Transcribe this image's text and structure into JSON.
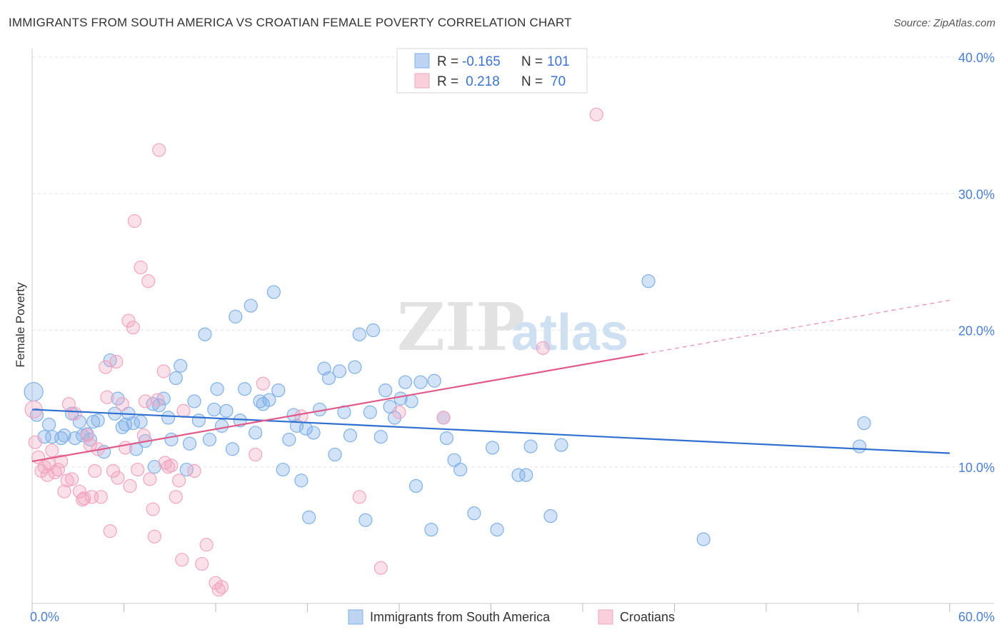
{
  "header": {
    "title": "IMMIGRANTS FROM SOUTH AMERICA VS CROATIAN FEMALE POVERTY CORRELATION CHART",
    "source": "Source: ZipAtlas.com"
  },
  "watermark": {
    "zip": "ZIP",
    "atlas": "atlas"
  },
  "legend_box": {
    "rows": [
      {
        "r_label": "R =",
        "r_value": "-0.165",
        "n_label": "N =",
        "n_value": "101",
        "color": "#7fb0e8"
      },
      {
        "r_label": "R =",
        "r_value": " 0.218",
        "n_label": "N =",
        "n_value": "70",
        "color": "#f2a5bf"
      }
    ]
  },
  "chart_data": {
    "type": "scatter",
    "title": "IMMIGRANTS FROM SOUTH AMERICA VS CROATIAN FEMALE POVERTY CORRELATION CHART",
    "xlabel": "",
    "ylabel": "Female Poverty",
    "xlim": [
      0,
      60
    ],
    "ylim": [
      0,
      40
    ],
    "x_tick_labels": [
      "0.0%",
      "60.0%"
    ],
    "y_tick_labels": [
      "10.0%",
      "20.0%",
      "30.0%",
      "40.0%"
    ],
    "y_ticks": [
      10,
      20,
      30,
      40
    ],
    "grid": true,
    "legend_position": "bottom",
    "colors": {
      "blue": "#7fb0e8",
      "blue_line": "#2f6fd0",
      "pink": "#f2a5bf",
      "pink_line": "#e05a8a",
      "tick_label": "#4a7fd4"
    },
    "series": [
      {
        "name": "Immigrants from South America",
        "color": "#7fb0e8",
        "trend": {
          "x": [
            0,
            60
          ],
          "y": [
            14.2,
            11.0
          ]
        },
        "points": [
          {
            "x": 0.1,
            "y": 15.5
          },
          {
            "x": 0.3,
            "y": 13.8
          },
          {
            "x": 0.8,
            "y": 12.2
          },
          {
            "x": 1.1,
            "y": 13.1
          },
          {
            "x": 1.3,
            "y": 12.2
          },
          {
            "x": 1.9,
            "y": 12.1
          },
          {
            "x": 2.1,
            "y": 12.3
          },
          {
            "x": 2.6,
            "y": 13.9
          },
          {
            "x": 2.8,
            "y": 12.1
          },
          {
            "x": 3.1,
            "y": 13.3
          },
          {
            "x": 3.3,
            "y": 12.3
          },
          {
            "x": 3.6,
            "y": 12.4
          },
          {
            "x": 3.8,
            "y": 12.0
          },
          {
            "x": 4.0,
            "y": 13.3
          },
          {
            "x": 4.3,
            "y": 13.4
          },
          {
            "x": 4.7,
            "y": 11.1
          },
          {
            "x": 5.1,
            "y": 17.8
          },
          {
            "x": 5.4,
            "y": 13.9
          },
          {
            "x": 5.6,
            "y": 15.0
          },
          {
            "x": 5.9,
            "y": 12.9
          },
          {
            "x": 6.1,
            "y": 13.1
          },
          {
            "x": 6.3,
            "y": 13.9
          },
          {
            "x": 6.6,
            "y": 13.2
          },
          {
            "x": 6.8,
            "y": 11.3
          },
          {
            "x": 7.1,
            "y": 13.3
          },
          {
            "x": 7.4,
            "y": 11.9
          },
          {
            "x": 7.9,
            "y": 14.6
          },
          {
            "x": 8.0,
            "y": 10.0
          },
          {
            "x": 8.3,
            "y": 14.5
          },
          {
            "x": 8.6,
            "y": 15.0
          },
          {
            "x": 8.9,
            "y": 13.6
          },
          {
            "x": 9.1,
            "y": 12.0
          },
          {
            "x": 9.4,
            "y": 16.5
          },
          {
            "x": 9.7,
            "y": 17.4
          },
          {
            "x": 10.1,
            "y": 9.8
          },
          {
            "x": 10.3,
            "y": 11.7
          },
          {
            "x": 10.6,
            "y": 14.8
          },
          {
            "x": 10.9,
            "y": 13.4
          },
          {
            "x": 11.3,
            "y": 19.7
          },
          {
            "x": 11.6,
            "y": 12.0
          },
          {
            "x": 11.9,
            "y": 14.2
          },
          {
            "x": 12.1,
            "y": 15.7
          },
          {
            "x": 12.4,
            "y": 13.0
          },
          {
            "x": 12.7,
            "y": 14.1
          },
          {
            "x": 13.1,
            "y": 11.3
          },
          {
            "x": 13.3,
            "y": 21.0
          },
          {
            "x": 13.6,
            "y": 13.4
          },
          {
            "x": 13.9,
            "y": 15.7
          },
          {
            "x": 14.3,
            "y": 21.8
          },
          {
            "x": 14.6,
            "y": 12.5
          },
          {
            "x": 14.9,
            "y": 14.8
          },
          {
            "x": 15.1,
            "y": 14.6
          },
          {
            "x": 15.5,
            "y": 14.9
          },
          {
            "x": 15.8,
            "y": 22.8
          },
          {
            "x": 16.1,
            "y": 15.6
          },
          {
            "x": 16.4,
            "y": 9.8
          },
          {
            "x": 16.8,
            "y": 12.0
          },
          {
            "x": 17.1,
            "y": 13.8
          },
          {
            "x": 17.3,
            "y": 13.0
          },
          {
            "x": 17.6,
            "y": 9.0
          },
          {
            "x": 17.9,
            "y": 12.8
          },
          {
            "x": 18.1,
            "y": 6.3
          },
          {
            "x": 18.4,
            "y": 12.5
          },
          {
            "x": 18.8,
            "y": 14.2
          },
          {
            "x": 19.1,
            "y": 17.2
          },
          {
            "x": 19.4,
            "y": 16.5
          },
          {
            "x": 19.8,
            "y": 10.9
          },
          {
            "x": 20.1,
            "y": 17.0
          },
          {
            "x": 20.4,
            "y": 14.0
          },
          {
            "x": 20.8,
            "y": 12.3
          },
          {
            "x": 21.1,
            "y": 17.3
          },
          {
            "x": 21.4,
            "y": 19.7
          },
          {
            "x": 21.8,
            "y": 6.1
          },
          {
            "x": 22.1,
            "y": 14.0
          },
          {
            "x": 22.3,
            "y": 20.0
          },
          {
            "x": 22.8,
            "y": 12.2
          },
          {
            "x": 23.1,
            "y": 15.6
          },
          {
            "x": 23.4,
            "y": 14.4
          },
          {
            "x": 23.7,
            "y": 13.6
          },
          {
            "x": 24.1,
            "y": 15.0
          },
          {
            "x": 24.4,
            "y": 16.2
          },
          {
            "x": 24.8,
            "y": 14.8
          },
          {
            "x": 25.1,
            "y": 8.6
          },
          {
            "x": 25.4,
            "y": 16.2
          },
          {
            "x": 26.1,
            "y": 5.4
          },
          {
            "x": 26.3,
            "y": 16.3
          },
          {
            "x": 26.9,
            "y": 13.6
          },
          {
            "x": 27.1,
            "y": 12.1
          },
          {
            "x": 27.6,
            "y": 10.5
          },
          {
            "x": 28.0,
            "y": 9.8
          },
          {
            "x": 28.9,
            "y": 6.6
          },
          {
            "x": 30.1,
            "y": 11.4
          },
          {
            "x": 30.4,
            "y": 5.4
          },
          {
            "x": 31.8,
            "y": 9.4
          },
          {
            "x": 32.3,
            "y": 9.4
          },
          {
            "x": 32.6,
            "y": 11.5
          },
          {
            "x": 33.9,
            "y": 6.4
          },
          {
            "x": 34.6,
            "y": 11.6
          },
          {
            "x": 40.3,
            "y": 23.6
          },
          {
            "x": 43.9,
            "y": 4.7
          },
          {
            "x": 54.1,
            "y": 11.5
          },
          {
            "x": 54.4,
            "y": 13.2
          }
        ]
      },
      {
        "name": "Croatians",
        "color": "#f2a5bf",
        "trend": {
          "x": [
            0,
            60
          ],
          "y": [
            10.4,
            22.2
          ],
          "solid_until_x": 40
        },
        "points": [
          {
            "x": 0.1,
            "y": 14.2
          },
          {
            "x": 0.2,
            "y": 11.8
          },
          {
            "x": 0.4,
            "y": 10.7
          },
          {
            "x": 0.6,
            "y": 9.7
          },
          {
            "x": 0.8,
            "y": 10.0
          },
          {
            "x": 1.0,
            "y": 9.4
          },
          {
            "x": 1.1,
            "y": 10.2
          },
          {
            "x": 1.3,
            "y": 11.2
          },
          {
            "x": 1.5,
            "y": 9.6
          },
          {
            "x": 1.7,
            "y": 9.8
          },
          {
            "x": 1.9,
            "y": 10.4
          },
          {
            "x": 2.1,
            "y": 8.2
          },
          {
            "x": 2.3,
            "y": 9.0
          },
          {
            "x": 2.4,
            "y": 14.6
          },
          {
            "x": 2.6,
            "y": 9.1
          },
          {
            "x": 2.8,
            "y": 13.9
          },
          {
            "x": 3.1,
            "y": 8.2
          },
          {
            "x": 3.3,
            "y": 7.6
          },
          {
            "x": 3.4,
            "y": 7.7
          },
          {
            "x": 3.6,
            "y": 12.3
          },
          {
            "x": 3.8,
            "y": 11.6
          },
          {
            "x": 3.9,
            "y": 7.8
          },
          {
            "x": 4.1,
            "y": 9.7
          },
          {
            "x": 4.3,
            "y": 11.3
          },
          {
            "x": 4.5,
            "y": 7.8
          },
          {
            "x": 4.8,
            "y": 17.3
          },
          {
            "x": 4.9,
            "y": 15.1
          },
          {
            "x": 5.1,
            "y": 5.3
          },
          {
            "x": 5.3,
            "y": 9.7
          },
          {
            "x": 5.5,
            "y": 17.7
          },
          {
            "x": 5.6,
            "y": 9.2
          },
          {
            "x": 5.9,
            "y": 14.6
          },
          {
            "x": 6.1,
            "y": 11.4
          },
          {
            "x": 6.3,
            "y": 20.7
          },
          {
            "x": 6.4,
            "y": 8.6
          },
          {
            "x": 6.6,
            "y": 20.2
          },
          {
            "x": 6.7,
            "y": 28.0
          },
          {
            "x": 6.9,
            "y": 9.8
          },
          {
            "x": 7.1,
            "y": 24.6
          },
          {
            "x": 7.3,
            "y": 12.3
          },
          {
            "x": 7.4,
            "y": 14.8
          },
          {
            "x": 7.6,
            "y": 23.6
          },
          {
            "x": 7.7,
            "y": 9.1
          },
          {
            "x": 7.9,
            "y": 6.9
          },
          {
            "x": 8.0,
            "y": 4.9
          },
          {
            "x": 8.2,
            "y": 14.9
          },
          {
            "x": 8.3,
            "y": 33.2
          },
          {
            "x": 8.6,
            "y": 17.0
          },
          {
            "x": 8.7,
            "y": 10.3
          },
          {
            "x": 8.9,
            "y": 10.0
          },
          {
            "x": 9.1,
            "y": 10.1
          },
          {
            "x": 9.4,
            "y": 7.8
          },
          {
            "x": 9.6,
            "y": 9.0
          },
          {
            "x": 9.8,
            "y": 3.2
          },
          {
            "x": 9.9,
            "y": 14.1
          },
          {
            "x": 10.6,
            "y": 9.7
          },
          {
            "x": 11.1,
            "y": 2.9
          },
          {
            "x": 11.4,
            "y": 4.3
          },
          {
            "x": 12.0,
            "y": 1.5
          },
          {
            "x": 12.2,
            "y": 1.0
          },
          {
            "x": 12.4,
            "y": 1.2
          },
          {
            "x": 14.6,
            "y": 10.9
          },
          {
            "x": 15.1,
            "y": 16.1
          },
          {
            "x": 17.6,
            "y": 13.7
          },
          {
            "x": 21.4,
            "y": 7.8
          },
          {
            "x": 22.8,
            "y": 2.6
          },
          {
            "x": 24.0,
            "y": 14.0
          },
          {
            "x": 33.4,
            "y": 18.7
          },
          {
            "x": 36.9,
            "y": 35.8
          },
          {
            "x": 26.9,
            "y": 13.6
          }
        ]
      }
    ]
  },
  "bottom_legend": [
    {
      "label": "Immigrants from South America",
      "color": "#7fb0e8"
    },
    {
      "label": "Croatians",
      "color": "#f2a5bf"
    }
  ]
}
